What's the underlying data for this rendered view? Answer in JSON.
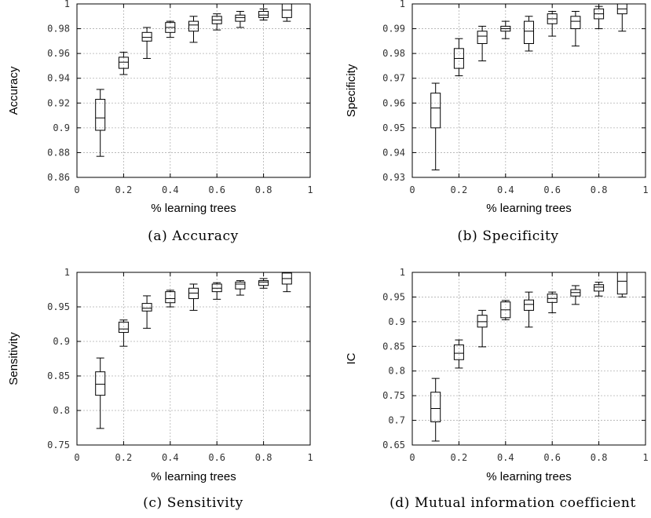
{
  "chart_data": [
    {
      "type": "box",
      "caption": "(a) Accuracy",
      "xlabel": "% learning trees",
      "ylabel": "Accuracy",
      "xlim": [
        0,
        1
      ],
      "ylim": [
        0.86,
        1
      ],
      "xticks": [
        "0",
        "0.2",
        "0.4",
        "0.6",
        "0.8",
        "1"
      ],
      "yticks": [
        "0.86",
        "0.88",
        "0.9",
        "0.92",
        "0.94",
        "0.96",
        "0.98",
        "1"
      ],
      "ytick_values": [
        0.86,
        0.88,
        0.9,
        0.92,
        0.94,
        0.96,
        0.98,
        1
      ],
      "grid": true,
      "boxes": [
        {
          "x": 0.1,
          "min": 0.877,
          "q1": 0.898,
          "median": 0.908,
          "q3": 0.923,
          "max": 0.931
        },
        {
          "x": 0.2,
          "min": 0.943,
          "q1": 0.948,
          "median": 0.953,
          "q3": 0.957,
          "max": 0.961
        },
        {
          "x": 0.3,
          "min": 0.956,
          "q1": 0.97,
          "median": 0.973,
          "q3": 0.977,
          "max": 0.981
        },
        {
          "x": 0.4,
          "min": 0.973,
          "q1": 0.977,
          "median": 0.981,
          "q3": 0.985,
          "max": 0.986
        },
        {
          "x": 0.5,
          "min": 0.969,
          "q1": 0.978,
          "median": 0.983,
          "q3": 0.986,
          "max": 0.99
        },
        {
          "x": 0.6,
          "min": 0.979,
          "q1": 0.984,
          "median": 0.987,
          "q3": 0.99,
          "max": 0.992
        },
        {
          "x": 0.7,
          "min": 0.981,
          "q1": 0.986,
          "median": 0.989,
          "q3": 0.991,
          "max": 0.994
        },
        {
          "x": 0.8,
          "min": 0.987,
          "q1": 0.989,
          "median": 0.991,
          "q3": 0.994,
          "max": 0.996
        },
        {
          "x": 0.9,
          "min": 0.986,
          "q1": 0.989,
          "median": 0.995,
          "q3": 1.0,
          "max": 1.0
        }
      ]
    },
    {
      "type": "box",
      "caption": "(b) Specificity",
      "xlabel": "% learning trees",
      "ylabel": "Specificity",
      "xlim": [
        0,
        1
      ],
      "ylim": [
        0.93,
        1
      ],
      "xticks": [
        "0",
        "0.2",
        "0.4",
        "0.6",
        "0.8",
        "1"
      ],
      "yticks": [
        "0.93",
        "0.94",
        "0.95",
        "0.96",
        "0.97",
        "0.98",
        "0.99",
        "1"
      ],
      "ytick_values": [
        0.93,
        0.94,
        0.95,
        0.96,
        0.97,
        0.98,
        0.99,
        1
      ],
      "grid": true,
      "boxes": [
        {
          "x": 0.1,
          "min": 0.933,
          "q1": 0.95,
          "median": 0.958,
          "q3": 0.964,
          "max": 0.968
        },
        {
          "x": 0.2,
          "min": 0.971,
          "q1": 0.974,
          "median": 0.978,
          "q3": 0.982,
          "max": 0.986
        },
        {
          "x": 0.3,
          "min": 0.977,
          "q1": 0.984,
          "median": 0.987,
          "q3": 0.989,
          "max": 0.991
        },
        {
          "x": 0.4,
          "min": 0.986,
          "q1": 0.989,
          "median": 0.99,
          "q3": 0.991,
          "max": 0.993
        },
        {
          "x": 0.5,
          "min": 0.981,
          "q1": 0.984,
          "median": 0.989,
          "q3": 0.993,
          "max": 0.995
        },
        {
          "x": 0.6,
          "min": 0.987,
          "q1": 0.992,
          "median": 0.994,
          "q3": 0.996,
          "max": 0.997
        },
        {
          "x": 0.7,
          "min": 0.983,
          "q1": 0.99,
          "median": 0.993,
          "q3": 0.995,
          "max": 0.997
        },
        {
          "x": 0.8,
          "min": 0.99,
          "q1": 0.994,
          "median": 0.996,
          "q3": 0.998,
          "max": 0.999
        },
        {
          "x": 0.9,
          "min": 0.989,
          "q1": 0.996,
          "median": 0.998,
          "q3": 1.0,
          "max": 1.0
        }
      ]
    },
    {
      "type": "box",
      "caption": "(c) Sensitivity",
      "xlabel": "% learning trees",
      "ylabel": "Sensitivity",
      "xlim": [
        0,
        1
      ],
      "ylim": [
        0.75,
        1
      ],
      "xticks": [
        "0",
        "0.2",
        "0.4",
        "0.6",
        "0.8",
        "1"
      ],
      "yticks": [
        "0.75",
        "0.8",
        "0.85",
        "0.9",
        "0.95",
        "1"
      ],
      "ytick_values": [
        0.75,
        0.8,
        0.85,
        0.9,
        0.95,
        1
      ],
      "grid": true,
      "boxes": [
        {
          "x": 0.1,
          "min": 0.774,
          "q1": 0.822,
          "median": 0.838,
          "q3": 0.856,
          "max": 0.876
        },
        {
          "x": 0.2,
          "min": 0.893,
          "q1": 0.913,
          "median": 0.918,
          "q3": 0.928,
          "max": 0.931
        },
        {
          "x": 0.3,
          "min": 0.919,
          "q1": 0.944,
          "median": 0.948,
          "q3": 0.955,
          "max": 0.966
        },
        {
          "x": 0.4,
          "min": 0.95,
          "q1": 0.956,
          "median": 0.962,
          "q3": 0.972,
          "max": 0.974
        },
        {
          "x": 0.5,
          "min": 0.945,
          "q1": 0.962,
          "median": 0.97,
          "q3": 0.977,
          "max": 0.983
        },
        {
          "x": 0.6,
          "min": 0.961,
          "q1": 0.972,
          "median": 0.977,
          "q3": 0.983,
          "max": 0.985
        },
        {
          "x": 0.7,
          "min": 0.967,
          "q1": 0.976,
          "median": 0.983,
          "q3": 0.986,
          "max": 0.988
        },
        {
          "x": 0.8,
          "min": 0.977,
          "q1": 0.981,
          "median": 0.986,
          "q3": 0.988,
          "max": 0.991
        },
        {
          "x": 0.9,
          "min": 0.972,
          "q1": 0.983,
          "median": 0.991,
          "q3": 0.999,
          "max": 1.0
        }
      ]
    },
    {
      "type": "box",
      "caption": "(d) Mutual information coefficient",
      "xlabel": "% learning trees",
      "ylabel": "IC",
      "xlim": [
        0,
        1
      ],
      "ylim": [
        0.65,
        1
      ],
      "xticks": [
        "0",
        "0.2",
        "0.4",
        "0.6",
        "0.8",
        "1"
      ],
      "yticks": [
        "0.65",
        "0.7",
        "0.75",
        "0.8",
        "0.85",
        "0.9",
        "0.95",
        "1"
      ],
      "ytick_values": [
        0.65,
        0.7,
        0.75,
        0.8,
        0.85,
        0.9,
        0.95,
        1
      ],
      "grid": true,
      "boxes": [
        {
          "x": 0.1,
          "min": 0.658,
          "q1": 0.697,
          "median": 0.724,
          "q3": 0.757,
          "max": 0.785
        },
        {
          "x": 0.2,
          "min": 0.806,
          "q1": 0.823,
          "median": 0.836,
          "q3": 0.853,
          "max": 0.863
        },
        {
          "x": 0.3,
          "min": 0.849,
          "q1": 0.889,
          "median": 0.9,
          "q3": 0.913,
          "max": 0.923
        },
        {
          "x": 0.4,
          "min": 0.904,
          "q1": 0.908,
          "median": 0.924,
          "q3": 0.94,
          "max": 0.943
        },
        {
          "x": 0.5,
          "min": 0.889,
          "q1": 0.923,
          "median": 0.935,
          "q3": 0.944,
          "max": 0.96
        },
        {
          "x": 0.6,
          "min": 0.918,
          "q1": 0.939,
          "median": 0.947,
          "q3": 0.956,
          "max": 0.96
        },
        {
          "x": 0.7,
          "min": 0.935,
          "q1": 0.952,
          "median": 0.959,
          "q3": 0.965,
          "max": 0.973
        },
        {
          "x": 0.8,
          "min": 0.952,
          "q1": 0.962,
          "median": 0.97,
          "q3": 0.975,
          "max": 0.98
        },
        {
          "x": 0.9,
          "min": 0.95,
          "q1": 0.956,
          "median": 0.982,
          "q3": 1.0,
          "max": 1.0
        }
      ]
    }
  ]
}
